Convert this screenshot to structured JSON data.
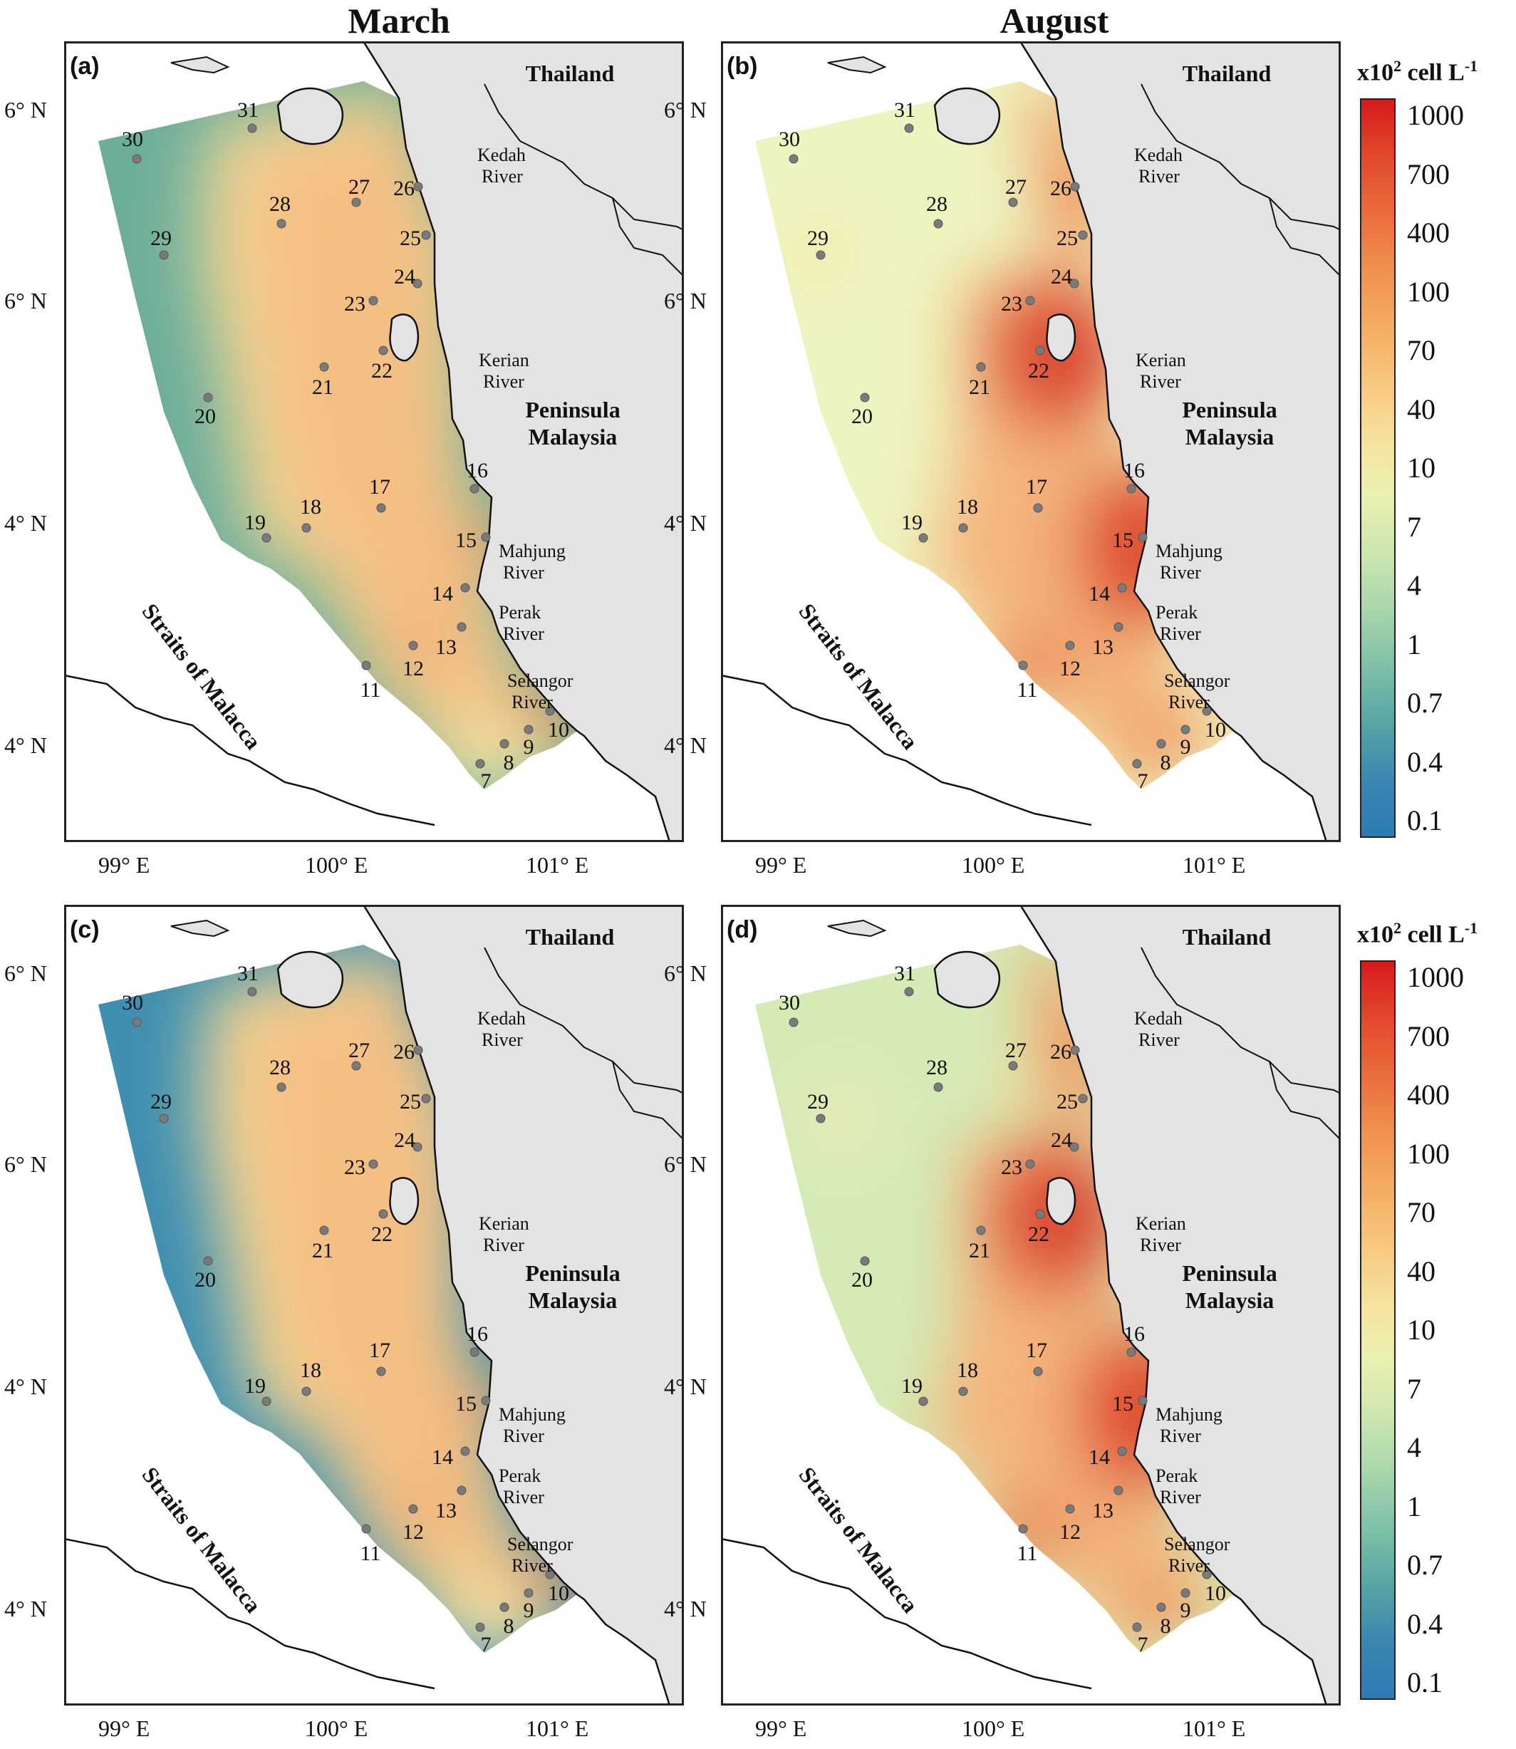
{
  "column_titles": [
    "March",
    "August"
  ],
  "lat_labels": [
    "6° N",
    "6° N",
    "4° N",
    "4° N"
  ],
  "lon_labels": [
    "99° E",
    "100° E",
    "101° E"
  ],
  "legend": {
    "title": "x10",
    "title_sup": "2",
    "title_rest": " cell L",
    "title_sup2": "-1",
    "ticks": [
      "1000",
      "700",
      "400",
      "100",
      "70",
      "40",
      "10",
      "7",
      "4",
      "1",
      "0.7",
      "0.4",
      "0.1"
    ],
    "colors": [
      "#d7191c",
      "#e2492c",
      "#ea6c3c",
      "#f0914f",
      "#f4ac62",
      "#f7c77f",
      "#f6e29d",
      "#eaf1b1",
      "#cde6b0",
      "#a8d6ad",
      "#7fc0a8",
      "#57a5a5",
      "#3b86b2",
      "#2c7bb6"
    ]
  },
  "panels": [
    {
      "id": "(a)",
      "season": "March"
    },
    {
      "id": "(b)",
      "season": "August"
    },
    {
      "id": "(c)",
      "season": "March"
    },
    {
      "id": "(d)",
      "season": "August"
    }
  ],
  "places": {
    "thailand": "Thailand",
    "peninsula1": "Peninsula",
    "peninsula2": "Malaysia",
    "straits": "Straits of Malacca",
    "rivers": [
      [
        "Kedah",
        "River"
      ],
      [
        "Kerian",
        "River"
      ],
      [
        "Mahjung",
        "River"
      ],
      [
        "Perak",
        "River"
      ],
      [
        "Selangor",
        "River"
      ]
    ]
  },
  "stations": [
    "7",
    "8",
    "9",
    "10",
    "11",
    "12",
    "13",
    "14",
    "15",
    "16",
    "17",
    "18",
    "19",
    "20",
    "21",
    "22",
    "23",
    "24",
    "25",
    "26",
    "27",
    "28",
    "29",
    "30",
    "31"
  ]
}
